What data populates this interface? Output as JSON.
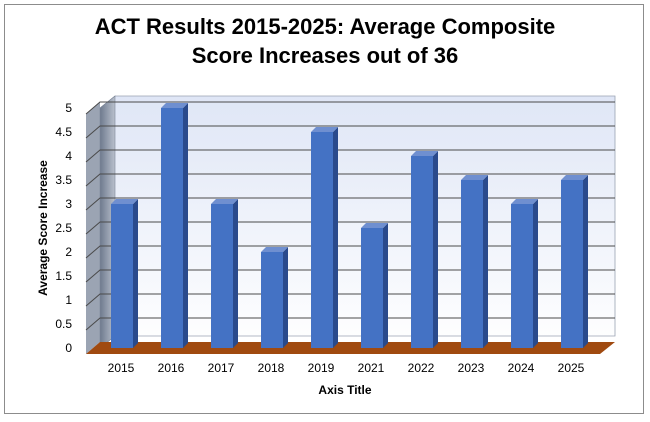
{
  "chart_data": {
    "type": "bar",
    "title_line1": "ACT Results 2015-2025:  Average Composite",
    "title_line2": "Score Increases out of 36",
    "categories": [
      "2015",
      "2016",
      "2017",
      "2018",
      "2019",
      "2021",
      "2022",
      "2023",
      "2024",
      "2025"
    ],
    "series": [
      {
        "values": [
          3,
          5,
          3,
          2,
          4.5,
          2.5,
          4,
          3.5,
          3,
          3.5
        ]
      }
    ],
    "xlabel": "Axis Title",
    "ylabel": "Average Score Increase",
    "ylim": [
      0,
      5
    ],
    "yticks": [
      "0",
      "0.5",
      "1",
      "1.5",
      "2",
      "2.5",
      "3",
      "3.5",
      "4",
      "4.5",
      "5"
    ],
    "grid": true,
    "legend": "none",
    "colors": {
      "bar_front": "#4472c4",
      "bar_side": "#2a4a8c",
      "bar_top": "#6f8fd0",
      "floor": "#a04a10",
      "wall_top": "#dfe6f6",
      "wall_bottom": "#ffffff",
      "side_wall": "#8a94a6"
    }
  }
}
